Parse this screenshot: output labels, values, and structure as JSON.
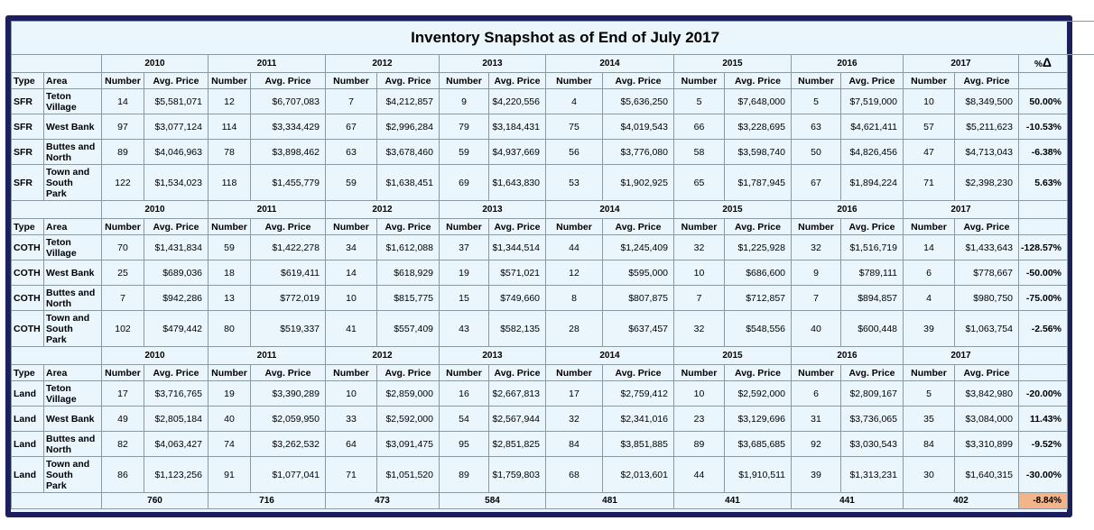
{
  "title": "Inventory Snapshot as of End of July 2017",
  "years": [
    "2010",
    "2011",
    "2012",
    "2013",
    "2014",
    "2015",
    "2016",
    "2017"
  ],
  "labels": {
    "type": "Type",
    "area": "Area",
    "number": "Number",
    "avg_price": "Avg. Price",
    "pct_header": "%",
    "delta_symbol": "Δ"
  },
  "sections": [
    {
      "rows": [
        {
          "type": "SFR",
          "area_lines": [
            "Teton",
            "Village"
          ],
          "cells": [
            [
              "14",
              "$5,581,071"
            ],
            [
              "12",
              "$6,707,083"
            ],
            [
              "7",
              "$4,212,857"
            ],
            [
              "9",
              "$4,220,556"
            ],
            [
              "4",
              "$5,636,250"
            ],
            [
              "5",
              "$7,648,000"
            ],
            [
              "5",
              "$7,519,000"
            ],
            [
              "10",
              "$8,349,500"
            ]
          ],
          "pct": "50.00%"
        },
        {
          "type": "SFR",
          "area_lines": [
            "West Bank"
          ],
          "cells": [
            [
              "97",
              "$3,077,124"
            ],
            [
              "114",
              "$3,334,429"
            ],
            [
              "67",
              "$2,996,284"
            ],
            [
              "79",
              "$3,184,431"
            ],
            [
              "75",
              "$4,019,543"
            ],
            [
              "66",
              "$3,228,695"
            ],
            [
              "63",
              "$4,621,411"
            ],
            [
              "57",
              "$5,211,623"
            ]
          ],
          "pct": "-10.53%"
        },
        {
          "type": "SFR",
          "area_lines": [
            "Buttes and",
            "North"
          ],
          "cells": [
            [
              "89",
              "$4,046,963"
            ],
            [
              "78",
              "$3,898,462"
            ],
            [
              "63",
              "$3,678,460"
            ],
            [
              "59",
              "$4,937,669"
            ],
            [
              "56",
              "$3,776,080"
            ],
            [
              "58",
              "$3,598,740"
            ],
            [
              "50",
              "$4,826,456"
            ],
            [
              "47",
              "$4,713,043"
            ]
          ],
          "pct": "-6.38%"
        },
        {
          "type": "SFR",
          "area_lines": [
            "Town and",
            "South",
            "Park"
          ],
          "cells": [
            [
              "122",
              "$1,534,023"
            ],
            [
              "118",
              "$1,455,779"
            ],
            [
              "59",
              "$1,638,451"
            ],
            [
              "69",
              "$1,643,830"
            ],
            [
              "53",
              "$1,902,925"
            ],
            [
              "65",
              "$1,787,945"
            ],
            [
              "67",
              "$1,894,224"
            ],
            [
              "71",
              "$2,398,230"
            ]
          ],
          "pct": "5.63%"
        }
      ]
    },
    {
      "rows": [
        {
          "type": "COTH",
          "area_lines": [
            "Teton",
            "Village"
          ],
          "cells": [
            [
              "70",
              "$1,431,834"
            ],
            [
              "59",
              "$1,422,278"
            ],
            [
              "34",
              "$1,612,088"
            ],
            [
              "37",
              "$1,344,514"
            ],
            [
              "44",
              "$1,245,409"
            ],
            [
              "32",
              "$1,225,928"
            ],
            [
              "32",
              "$1,516,719"
            ],
            [
              "14",
              "$1,433,643"
            ]
          ],
          "pct": "-128.57%"
        },
        {
          "type": "COTH",
          "area_lines": [
            "West Bank"
          ],
          "cells": [
            [
              "25",
              "$689,036"
            ],
            [
              "18",
              "$619,411"
            ],
            [
              "14",
              "$618,929"
            ],
            [
              "19",
              "$571,021"
            ],
            [
              "12",
              "$595,000"
            ],
            [
              "10",
              "$686,600"
            ],
            [
              "9",
              "$789,111"
            ],
            [
              "6",
              "$778,667"
            ]
          ],
          "pct": "-50.00%"
        },
        {
          "type": "COTH",
          "area_lines": [
            "Buttes and",
            "North"
          ],
          "cells": [
            [
              "7",
              "$942,286"
            ],
            [
              "13",
              "$772,019"
            ],
            [
              "10",
              "$815,775"
            ],
            [
              "15",
              "$749,660"
            ],
            [
              "8",
              "$807,875"
            ],
            [
              "7",
              "$712,857"
            ],
            [
              "7",
              "$894,857"
            ],
            [
              "4",
              "$980,750"
            ]
          ],
          "pct": "-75.00%"
        },
        {
          "type": "COTH",
          "area_lines": [
            "Town and",
            "South",
            "Park"
          ],
          "cells": [
            [
              "102",
              "$479,442"
            ],
            [
              "80",
              "$519,337"
            ],
            [
              "41",
              "$557,409"
            ],
            [
              "43",
              "$582,135"
            ],
            [
              "28",
              "$637,457"
            ],
            [
              "32",
              "$548,556"
            ],
            [
              "40",
              "$600,448"
            ],
            [
              "39",
              "$1,063,754"
            ]
          ],
          "pct": "-2.56%"
        }
      ]
    },
    {
      "rows": [
        {
          "type": "Land",
          "area_lines": [
            "Teton",
            "Village"
          ],
          "cells": [
            [
              "17",
              "$3,716,765"
            ],
            [
              "19",
              "$3,390,289"
            ],
            [
              "10",
              "$2,859,000"
            ],
            [
              "16",
              "$2,667,813"
            ],
            [
              "17",
              "$2,759,412"
            ],
            [
              "10",
              "$2,592,000"
            ],
            [
              "6",
              "$2,809,167"
            ],
            [
              "5",
              "$3,842,980"
            ]
          ],
          "pct": "-20.00%"
        },
        {
          "type": "Land",
          "area_lines": [
            "West Bank"
          ],
          "cells": [
            [
              "49",
              "$2,805,184"
            ],
            [
              "40",
              "$2,059,950"
            ],
            [
              "33",
              "$2,592,000"
            ],
            [
              "54",
              "$2,567,944"
            ],
            [
              "32",
              "$2,341,016"
            ],
            [
              "23",
              "$3,129,696"
            ],
            [
              "31",
              "$3,736,065"
            ],
            [
              "35",
              "$3,084,000"
            ]
          ],
          "pct": "11.43%"
        },
        {
          "type": "Land",
          "area_lines": [
            "Buttes and",
            "North"
          ],
          "cells": [
            [
              "82",
              "$4,063,427"
            ],
            [
              "74",
              "$3,262,532"
            ],
            [
              "64",
              "$3,091,475"
            ],
            [
              "95",
              "$2,851,825"
            ],
            [
              "84",
              "$3,851,885"
            ],
            [
              "89",
              "$3,685,685"
            ],
            [
              "92",
              "$3,030,543"
            ],
            [
              "84",
              "$3,310,899"
            ]
          ],
          "pct": "-9.52%"
        },
        {
          "type": "Land",
          "area_lines": [
            "Town and",
            "South",
            "Park"
          ],
          "cells": [
            [
              "86",
              "$1,123,256"
            ],
            [
              "91",
              "$1,077,041"
            ],
            [
              "71",
              "$1,051,520"
            ],
            [
              "89",
              "$1,759,803"
            ],
            [
              "68",
              "$2,013,601"
            ],
            [
              "44",
              "$1,910,511"
            ],
            [
              "39",
              "$1,313,231"
            ],
            [
              "30",
              "$1,640,315"
            ]
          ],
          "pct": "-30.00%"
        }
      ]
    }
  ],
  "totals": {
    "values": [
      "760",
      "716",
      "473",
      "584",
      "481",
      "441",
      "441",
      "402"
    ],
    "pct": "-8.84%"
  },
  "colors": {
    "frame": "#1b1f5e",
    "background": "#eaf6fb",
    "highlight": "#f4b48a"
  }
}
